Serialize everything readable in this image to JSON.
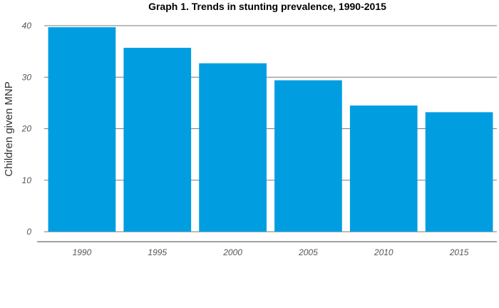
{
  "chart_data": {
    "type": "bar",
    "title": "Graph 1. Trends in stunting prevalence, 1990-2015",
    "xlabel": "",
    "ylabel": "Children given MNP",
    "categories": [
      "1990",
      "1995",
      "2000",
      "2005",
      "2010",
      "2015"
    ],
    "values": [
      39.7,
      35.7,
      32.7,
      29.4,
      24.5,
      23.2
    ],
    "ylim": [
      0,
      40
    ],
    "yticks": [
      "0",
      "10",
      "20",
      "30",
      "40"
    ],
    "grid": true,
    "legend": "none",
    "bar_color": "#009ee0"
  }
}
